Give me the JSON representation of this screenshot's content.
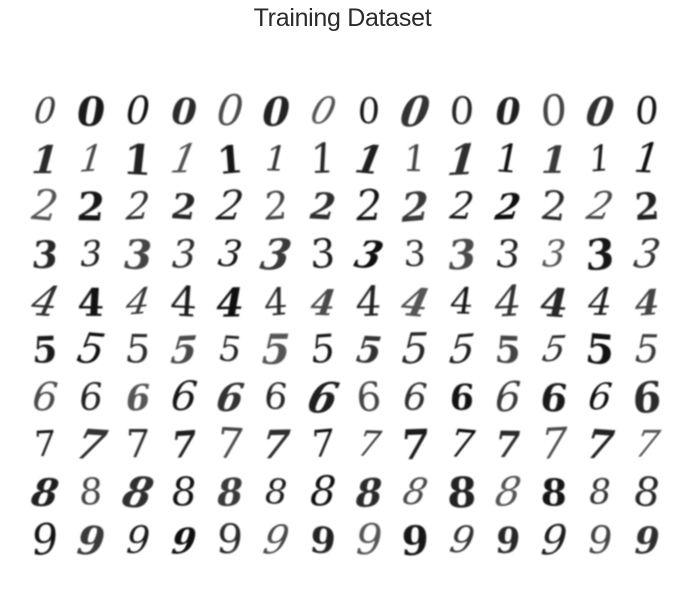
{
  "title": "Training Dataset",
  "digit_rows": [
    {
      "digit": "0",
      "samples": [
        "0",
        "0",
        "0",
        "0",
        "0",
        "0",
        "0",
        "0",
        "0",
        "0",
        "0",
        "0",
        "0",
        "0"
      ]
    },
    {
      "digit": "1",
      "samples": [
        "1",
        "1",
        "1",
        "1",
        "1",
        "1",
        "1",
        "1",
        "1",
        "1",
        "1",
        "1",
        "1",
        "1"
      ]
    },
    {
      "digit": "2",
      "samples": [
        "2",
        "2",
        "2",
        "2",
        "2",
        "2",
        "2",
        "2",
        "2",
        "2",
        "2",
        "2",
        "2",
        "2"
      ]
    },
    {
      "digit": "3",
      "samples": [
        "3",
        "3",
        "3",
        "3",
        "3",
        "3",
        "3",
        "3",
        "3",
        "3",
        "3",
        "3",
        "3",
        "3"
      ]
    },
    {
      "digit": "4",
      "samples": [
        "4",
        "4",
        "4",
        "4",
        "4",
        "4",
        "4",
        "4",
        "4",
        "4",
        "4",
        "4",
        "4",
        "4"
      ]
    },
    {
      "digit": "5",
      "samples": [
        "5",
        "5",
        "5",
        "5",
        "5",
        "5",
        "5",
        "5",
        "5",
        "5",
        "5",
        "5",
        "5",
        "5"
      ]
    },
    {
      "digit": "6",
      "samples": [
        "6",
        "6",
        "6",
        "6",
        "6",
        "6",
        "6",
        "6",
        "6",
        "6",
        "6",
        "6",
        "6",
        "6"
      ]
    },
    {
      "digit": "7",
      "samples": [
        "7",
        "7",
        "7",
        "7",
        "7",
        "7",
        "7",
        "7",
        "7",
        "7",
        "7",
        "7",
        "7",
        "7"
      ]
    },
    {
      "digit": "8",
      "samples": [
        "8",
        "8",
        "8",
        "8",
        "8",
        "8",
        "8",
        "8",
        "8",
        "8",
        "8",
        "8",
        "8",
        "8"
      ]
    },
    {
      "digit": "9",
      "samples": [
        "9",
        "9",
        "9",
        "9",
        "9",
        "9",
        "9",
        "9",
        "9",
        "9",
        "9",
        "9",
        "9",
        "9"
      ]
    }
  ],
  "ink_shades": [
    "#3a3a3a",
    "#1a1a1a",
    "#0f0f0f",
    "#2b2b2b",
    "#4a4a4a",
    "#222222",
    "#555555",
    "#161616",
    "#333333",
    "#272727",
    "#1f1f1f",
    "#444444",
    "#2f2f2f",
    "#121212"
  ]
}
